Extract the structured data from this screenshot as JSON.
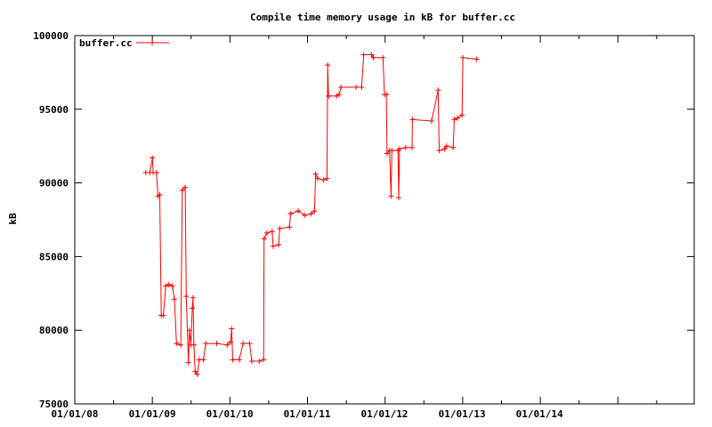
{
  "chart_data": {
    "type": "line",
    "title": "Compile time memory usage in kB for buffer.cc",
    "xlabel": "",
    "ylabel": "kB",
    "x_axis": "date",
    "xlim": [
      "2008-01-01",
      "2016-01-01"
    ],
    "ylim": [
      75000,
      100000
    ],
    "y_ticks": [
      75000,
      80000,
      85000,
      90000,
      95000,
      100000
    ],
    "x_tick_labels": [
      "01/01/08",
      "01/01/09",
      "01/01/10",
      "01/01/11",
      "01/01/12",
      "01/01/13",
      "01/01/14"
    ],
    "x_ticks": [
      "2008-01-01",
      "2009-01-01",
      "2010-01-01",
      "2011-01-01",
      "2012-01-01",
      "2013-01-01",
      "2014-01-01"
    ],
    "legend": {
      "position": "top-left"
    },
    "grid": false,
    "color": "#ff0000",
    "series": [
      {
        "name": "buffer.cc",
        "points": [
          [
            "2008-12-01",
            90700
          ],
          [
            "2008-12-20",
            90700
          ],
          [
            "2009-01-01",
            91700
          ],
          [
            "2009-01-05",
            90700
          ],
          [
            "2009-01-20",
            90700
          ],
          [
            "2009-01-28",
            89100
          ],
          [
            "2009-02-05",
            89200
          ],
          [
            "2009-02-12",
            81000
          ],
          [
            "2009-02-22",
            81000
          ],
          [
            "2009-03-05",
            83000
          ],
          [
            "2009-03-20",
            83100
          ],
          [
            "2009-04-05",
            83000
          ],
          [
            "2009-04-15",
            82100
          ],
          [
            "2009-04-25",
            79100
          ],
          [
            "2009-05-15",
            79000
          ],
          [
            "2009-05-22",
            89500
          ],
          [
            "2009-06-05",
            89700
          ],
          [
            "2009-06-10",
            82300
          ],
          [
            "2009-06-20",
            77800
          ],
          [
            "2009-06-25",
            80000
          ],
          [
            "2009-07-02",
            79000
          ],
          [
            "2009-07-08",
            81500
          ],
          [
            "2009-07-12",
            82200
          ],
          [
            "2009-07-16",
            79000
          ],
          [
            "2009-07-22",
            77200
          ],
          [
            "2009-08-01",
            77000
          ],
          [
            "2009-08-10",
            78000
          ],
          [
            "2009-08-30",
            78000
          ],
          [
            "2009-09-10",
            79100
          ],
          [
            "2009-11-01",
            79100
          ],
          [
            "2009-12-20",
            79000
          ],
          [
            "2010-01-05",
            79200
          ],
          [
            "2010-01-10",
            80100
          ],
          [
            "2010-01-15",
            78000
          ],
          [
            "2010-02-15",
            78000
          ],
          [
            "2010-03-05",
            79100
          ],
          [
            "2010-04-05",
            79100
          ],
          [
            "2010-04-15",
            77900
          ],
          [
            "2010-05-20",
            77900
          ],
          [
            "2010-06-10",
            78000
          ],
          [
            "2010-06-12",
            86200
          ],
          [
            "2010-06-25",
            86600
          ],
          [
            "2010-07-20",
            86700
          ],
          [
            "2010-07-25",
            85700
          ],
          [
            "2010-08-20",
            85800
          ],
          [
            "2010-08-25",
            86900
          ],
          [
            "2010-10-10",
            87000
          ],
          [
            "2010-10-15",
            87900
          ],
          [
            "2010-11-20",
            88100
          ],
          [
            "2010-12-20",
            87800
          ],
          [
            "2011-01-20",
            87900
          ],
          [
            "2011-02-05",
            88100
          ],
          [
            "2011-02-10",
            90600
          ],
          [
            "2011-02-20",
            90300
          ],
          [
            "2011-03-20",
            90200
          ],
          [
            "2011-04-05",
            90300
          ],
          [
            "2011-04-08",
            98000
          ],
          [
            "2011-04-12",
            95900
          ],
          [
            "2011-05-20",
            95900
          ],
          [
            "2011-06-01",
            96000
          ],
          [
            "2011-06-10",
            96500
          ],
          [
            "2011-08-20",
            96500
          ],
          [
            "2011-09-15",
            96500
          ],
          [
            "2011-09-25",
            98700
          ],
          [
            "2011-11-01",
            98700
          ],
          [
            "2011-11-10",
            98500
          ],
          [
            "2011-12-25",
            98500
          ],
          [
            "2012-01-01",
            96000
          ],
          [
            "2012-01-10",
            96000
          ],
          [
            "2012-01-13",
            92000
          ],
          [
            "2012-01-25",
            92200
          ],
          [
            "2012-02-01",
            89100
          ],
          [
            "2012-02-05",
            92200
          ],
          [
            "2012-03-05",
            92200
          ],
          [
            "2012-03-08",
            89000
          ],
          [
            "2012-03-12",
            92300
          ],
          [
            "2012-04-10",
            92400
          ],
          [
            "2012-05-10",
            92400
          ],
          [
            "2012-05-12",
            94300
          ],
          [
            "2012-08-10",
            94200
          ],
          [
            "2012-09-10",
            96300
          ],
          [
            "2012-09-15",
            92200
          ],
          [
            "2012-10-10",
            92300
          ],
          [
            "2012-10-20",
            92500
          ],
          [
            "2012-11-20",
            92400
          ],
          [
            "2012-11-25",
            94300
          ],
          [
            "2012-12-10",
            94400
          ],
          [
            "2013-01-01",
            94600
          ],
          [
            "2013-01-05",
            98500
          ],
          [
            "2013-03-10",
            98400
          ]
        ]
      }
    ]
  }
}
